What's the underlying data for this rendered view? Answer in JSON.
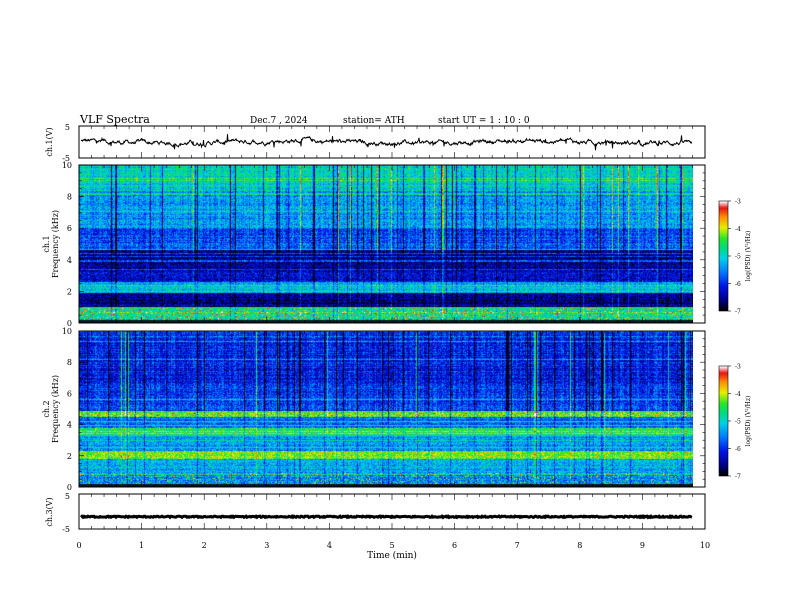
{
  "header": {
    "title": "VLF  Spectra",
    "date": "Dec.7  , 2024",
    "station": "station= ATH",
    "start_ut": "start  UT  =   1  : 10 : 0"
  },
  "colorbar_label": "log(PSD) (V²/Hz)",
  "chart_data": [
    {
      "type": "line",
      "panel": "ch1_waveform",
      "ylabel": "ch.1(V)",
      "ylim": [
        -5,
        5
      ],
      "y_ticks": [
        5,
        -5
      ],
      "x_range": [
        0,
        10
      ],
      "series_color": "#000000",
      "description_values": {
        "baseline_v": 0.0,
        "noise_amplitude_v": 0.7,
        "data_end_min": 9.8
      }
    },
    {
      "type": "heatmap",
      "panel": "ch1_spectrogram",
      "ylabel": "ch.1\nFrequency  (kHz)",
      "ylabel_top": "ch.1",
      "ylabel_bottom": "Frequency  (kHz)",
      "ylim": [
        0,
        10
      ],
      "y_ticks": [
        0,
        2,
        4,
        6,
        8,
        10
      ],
      "x_range": [
        0,
        10
      ],
      "data_end_min": 9.8,
      "colorbar": {
        "range": [
          -7,
          -3
        ],
        "ticks": [
          -3,
          -4,
          -5,
          -6,
          -7
        ]
      },
      "bands": [
        {
          "f_low": 0.0,
          "f_high": 0.3,
          "level": -5.2
        },
        {
          "f_low": 0.3,
          "f_high": 1.0,
          "level": -4.8
        },
        {
          "f_low": 1.0,
          "f_high": 1.9,
          "level": -6.6
        },
        {
          "f_low": 1.9,
          "f_high": 2.6,
          "level": -5.2
        },
        {
          "f_low": 2.6,
          "f_high": 3.3,
          "level": -6.3
        },
        {
          "f_low": 3.3,
          "f_high": 4.6,
          "level": -6.5
        },
        {
          "f_low": 4.6,
          "f_high": 6.0,
          "level": -5.8
        },
        {
          "f_low": 6.0,
          "f_high": 8.4,
          "level": -5.4
        },
        {
          "f_low": 8.4,
          "f_high": 10.0,
          "level": -5.0
        }
      ]
    },
    {
      "type": "heatmap",
      "panel": "ch2_spectrogram",
      "ylabel": "ch.2\nFrequency  (kHz)",
      "ylabel_top": "ch.2",
      "ylabel_bottom": "Frequency  (kHz)",
      "ylim": [
        0,
        10
      ],
      "y_ticks": [
        0,
        2,
        4,
        6,
        8,
        10
      ],
      "x_range": [
        0,
        10
      ],
      "data_end_min": 9.8,
      "colorbar": {
        "range": [
          -7,
          -3
        ],
        "ticks": [
          -3,
          -4,
          -5,
          -6,
          -7
        ]
      },
      "bands": [
        {
          "f_low": 0.0,
          "f_high": 0.8,
          "level": -5.5
        },
        {
          "f_low": 0.8,
          "f_high": 1.8,
          "level": -5.3
        },
        {
          "f_low": 1.8,
          "f_high": 2.3,
          "level": -4.2
        },
        {
          "f_low": 2.3,
          "f_high": 3.3,
          "level": -5.4
        },
        {
          "f_low": 3.3,
          "f_high": 3.8,
          "level": -4.6
        },
        {
          "f_low": 3.8,
          "f_high": 4.5,
          "level": -5.6
        },
        {
          "f_low": 4.5,
          "f_high": 4.9,
          "level": -4.4
        },
        {
          "f_low": 4.9,
          "f_high": 6.5,
          "level": -5.9
        },
        {
          "f_low": 6.5,
          "f_high": 10.0,
          "level": -6.1
        }
      ]
    },
    {
      "type": "line",
      "panel": "ch3_waveform",
      "ylabel": "ch.3(V)",
      "ylim": [
        -5,
        5
      ],
      "y_ticks": [
        5,
        -5
      ],
      "x_range": [
        0,
        10
      ],
      "x_ticks": [
        0,
        1,
        2,
        3,
        4,
        5,
        6,
        7,
        8,
        9,
        10
      ],
      "xlabel": "Time  (min)",
      "series_color": "#000000",
      "description_values": {
        "baseline_v": -1.5,
        "data_end_min": 9.8
      }
    }
  ]
}
